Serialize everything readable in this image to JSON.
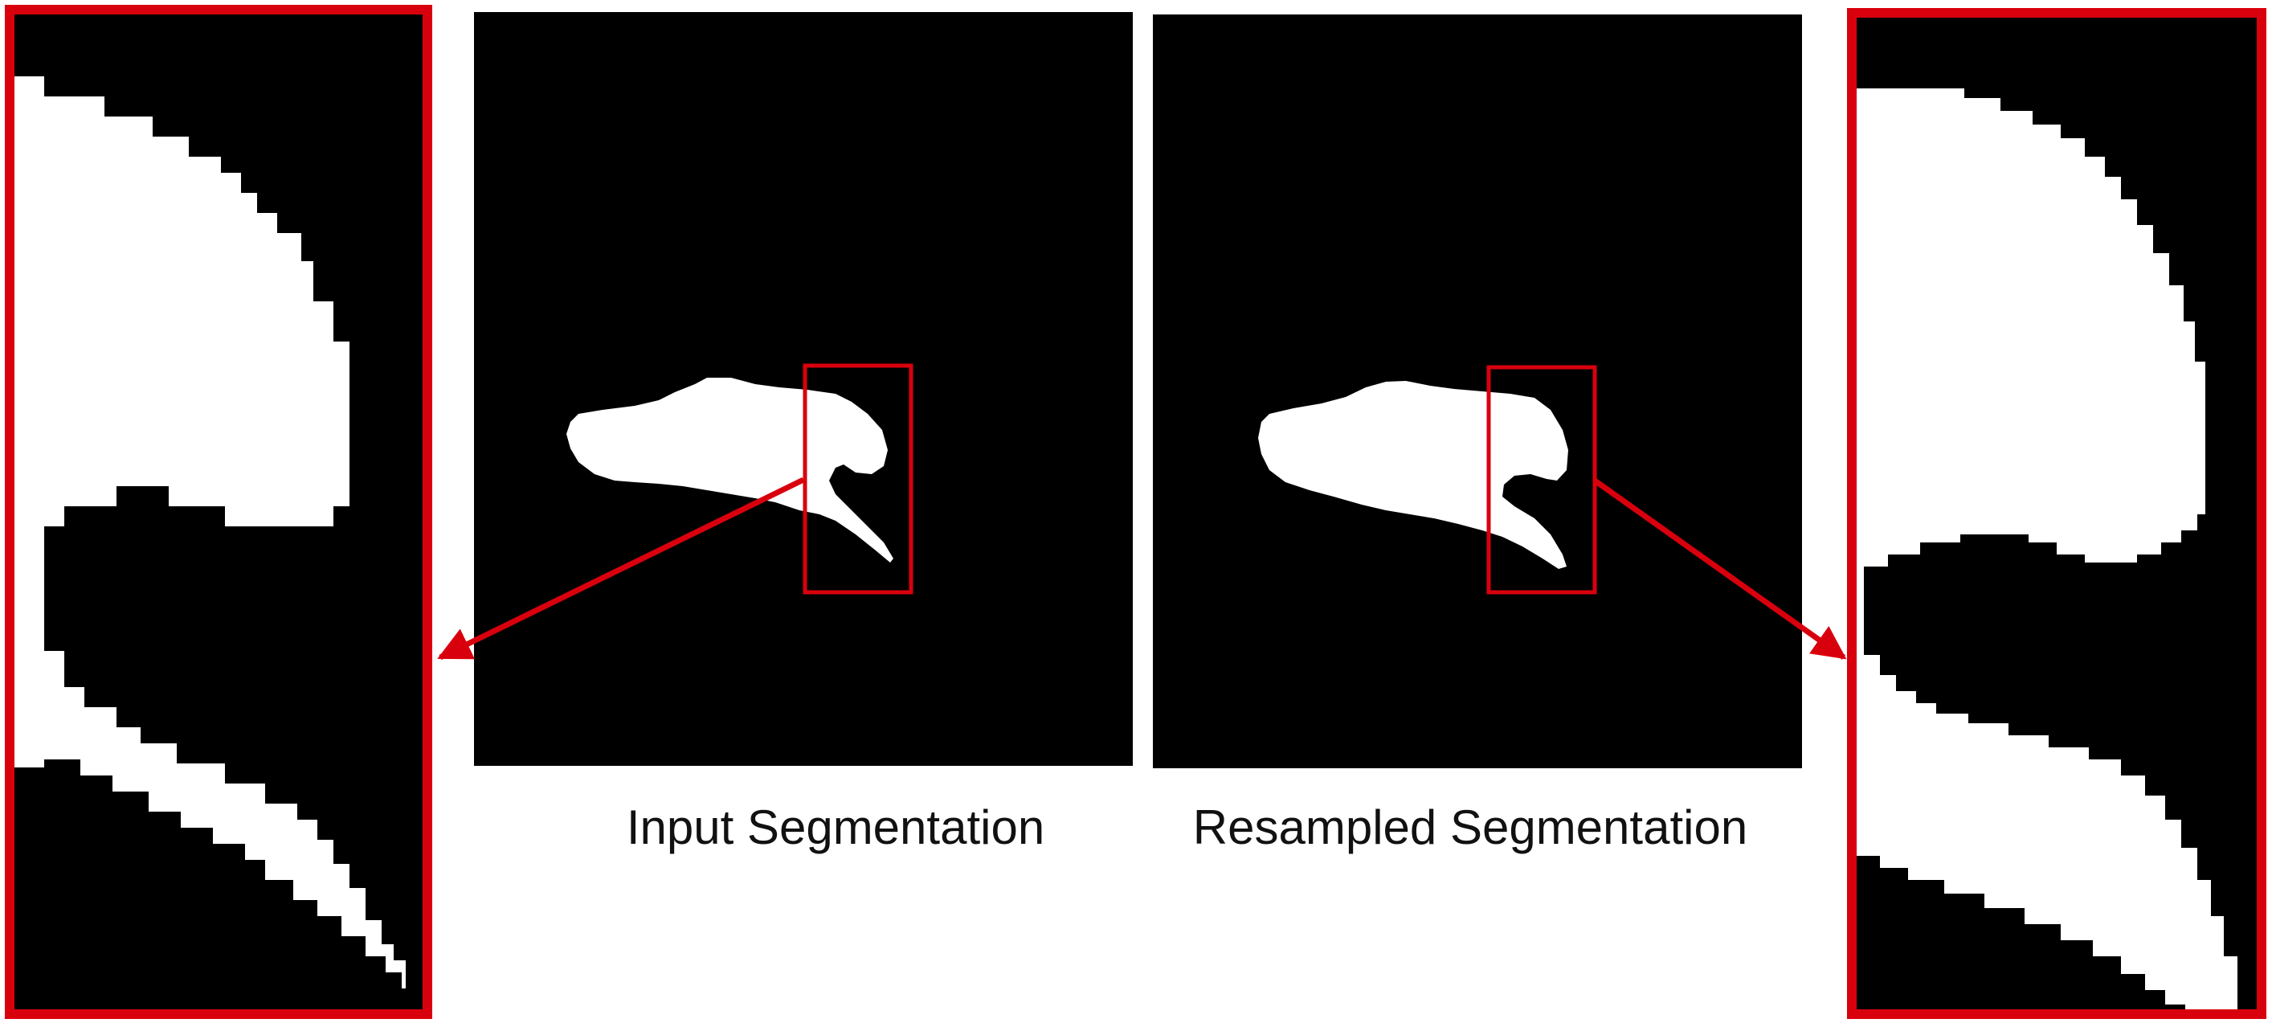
{
  "captions": {
    "input": "Input Segmentation",
    "resampled": "Resampled Segmentation"
  },
  "colors": {
    "background": "#ffffff",
    "panel": "#000000",
    "mask": "#ffffff",
    "highlight": "#d9000d"
  },
  "panels": [
    {
      "name": "input-segmentation",
      "content": "binary mask with jagged staircase edges"
    },
    {
      "name": "resampled-segmentation",
      "content": "binary mask with smoother edges"
    }
  ]
}
